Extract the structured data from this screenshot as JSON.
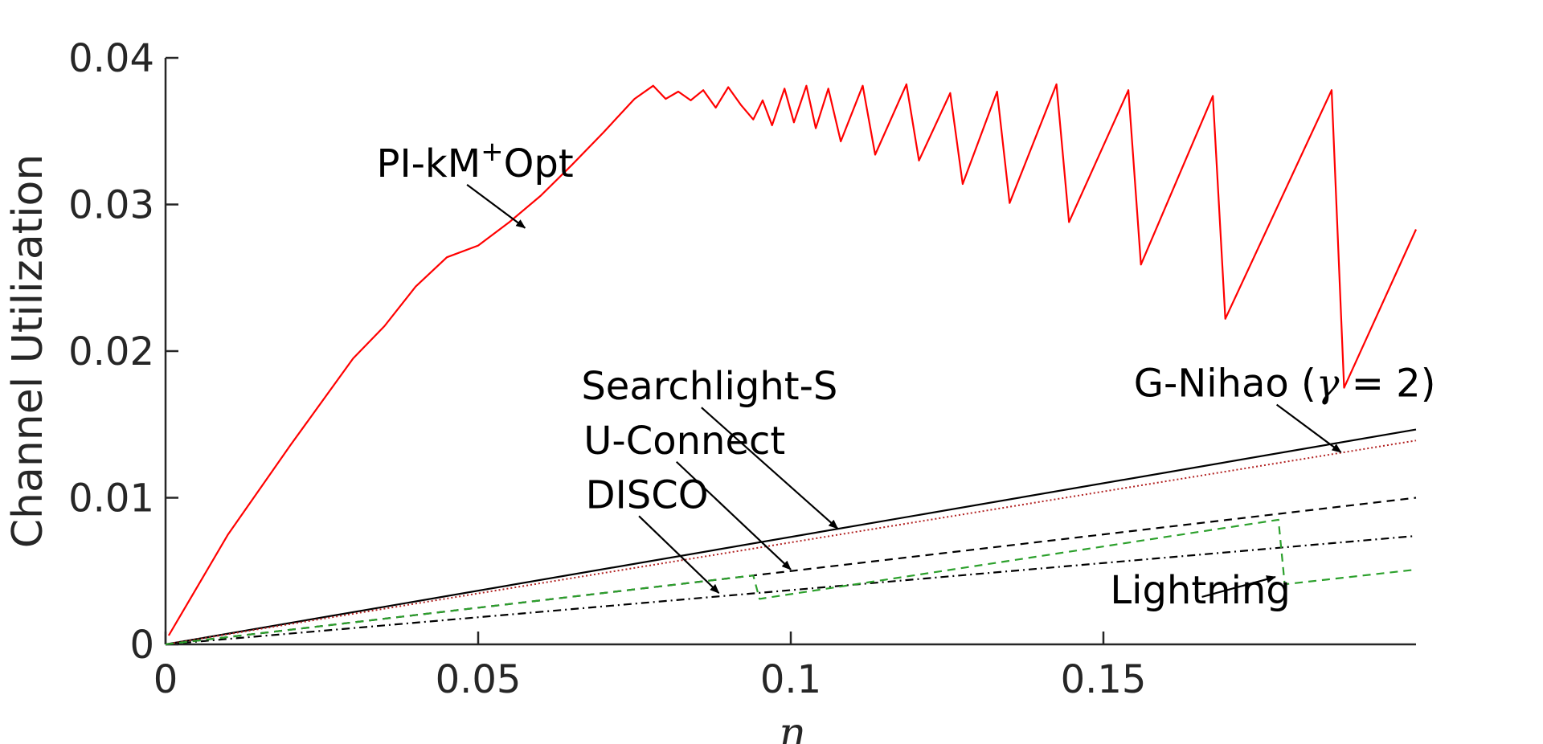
{
  "chart_data": {
    "type": "line",
    "title": "",
    "xlabel": "η",
    "ylabel": "Channel Utilization",
    "xlim": [
      0,
      0.2
    ],
    "ylim": [
      0,
      0.04
    ],
    "xticks": [
      0,
      0.05,
      0.1,
      0.15
    ],
    "xtick_labels": [
      "0",
      "0.05",
      "0.1",
      "0.15"
    ],
    "yticks": [
      0,
      0.01,
      0.02,
      0.03,
      0.04
    ],
    "ytick_labels": [
      "0",
      "0.01",
      "0.02",
      "0.03",
      "0.04"
    ],
    "grid": false,
    "series": [
      {
        "name": "PI-kM+Opt",
        "color": "#ff0000",
        "style": "solid",
        "x": [
          0.0005,
          0.01,
          0.02,
          0.03,
          0.035,
          0.04,
          0.045,
          0.05,
          0.055,
          0.06,
          0.065,
          0.07,
          0.075,
          0.078,
          0.08,
          0.082,
          0.084,
          0.086,
          0.088,
          0.09,
          0.092,
          0.094,
          0.0955,
          0.097,
          0.099,
          0.1005,
          0.1025,
          0.104,
          0.106,
          0.108,
          0.1115,
          0.1135,
          0.1185,
          0.1205,
          0.1255,
          0.1275,
          0.133,
          0.135,
          0.1425,
          0.1445,
          0.154,
          0.156,
          0.1675,
          0.1695,
          0.1865,
          0.1885,
          0.2
        ],
        "values": [
          0.0006,
          0.0075,
          0.0136,
          0.0195,
          0.0217,
          0.0244,
          0.0264,
          0.0272,
          0.0288,
          0.0306,
          0.0327,
          0.0349,
          0.0372,
          0.0381,
          0.0372,
          0.0377,
          0.0371,
          0.0378,
          0.0366,
          0.038,
          0.0368,
          0.0358,
          0.0371,
          0.0354,
          0.0379,
          0.0356,
          0.0381,
          0.0352,
          0.0379,
          0.0343,
          0.0381,
          0.0334,
          0.0382,
          0.033,
          0.0376,
          0.0314,
          0.0377,
          0.0301,
          0.0382,
          0.0288,
          0.0378,
          0.0259,
          0.0374,
          0.0222,
          0.0378,
          0.0175,
          0.0283
        ]
      },
      {
        "name": "G-Nihao (γ = 2)",
        "color": "#000000",
        "style": "solid",
        "x": [
          0,
          0.2
        ],
        "values": [
          0,
          0.01465
        ]
      },
      {
        "name": "Searchlight-S",
        "color": "#b22222",
        "style": "dotted",
        "x": [
          0,
          0.2
        ],
        "values": [
          0,
          0.0139
        ]
      },
      {
        "name": "U-Connect",
        "color": "#000000",
        "style": "dashed",
        "x": [
          0,
          0.2
        ],
        "values": [
          0,
          0.01
        ]
      },
      {
        "name": "DISCO",
        "color": "#000000",
        "style": "dashdot",
        "x": [
          0,
          0.2
        ],
        "values": [
          0,
          0.0074
        ]
      },
      {
        "name": "Lightning",
        "color": "#2ca02c",
        "style": "dashed",
        "x": [
          0,
          0.094,
          0.095,
          0.178,
          0.179,
          0.2
        ],
        "values": [
          0,
          0.0047,
          0.0031,
          0.0085,
          0.0041,
          0.0051
        ]
      }
    ],
    "annotations": [
      {
        "label": "PI-kM",
        "superscript": "+",
        "suffix": "Opt",
        "target": [
          0.0575,
          0.0284
        ],
        "text_at": [
          0.0495,
          0.0319
        ]
      },
      {
        "label": "Searchlight-S",
        "target": [
          0.1075,
          0.0079
        ],
        "text_at": [
          0.087,
          0.0167
        ]
      },
      {
        "label": "U-Connect",
        "target": [
          0.1,
          0.0051
        ],
        "text_at": [
          0.083,
          0.013
        ]
      },
      {
        "label": "DISCO",
        "target": [
          0.0885,
          0.0035
        ],
        "text_at": [
          0.077,
          0.0093
        ]
      },
      {
        "label": "G-Nihao (",
        "greek": "γ",
        "suffix": " = 2)",
        "target": [
          0.188,
          0.0131
        ],
        "text_at": [
          0.179,
          0.0169
        ]
      },
      {
        "label": "Lightning",
        "target": [
          0.1775,
          0.0046
        ],
        "text_at": [
          0.1655,
          0.0028
        ]
      }
    ]
  }
}
